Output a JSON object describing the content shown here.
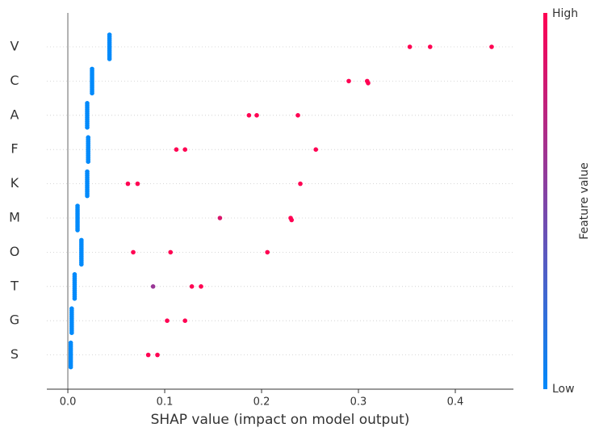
{
  "chart_data": {
    "type": "beeswarm",
    "xlabel": "SHAP value (impact on model output)",
    "categories": [
      "V",
      "C",
      "A",
      "F",
      "K",
      "M",
      "O",
      "T",
      "G",
      "S"
    ],
    "values": [
      [
        0.043,
        0.043,
        0.043,
        0.043,
        0.043,
        0.043,
        0.043,
        0.043,
        0.043,
        0.043,
        0.043,
        0.043,
        0.043,
        0.353,
        0.374,
        0.4375
      ],
      [
        0.025,
        0.025,
        0.025,
        0.025,
        0.025,
        0.025,
        0.025,
        0.025,
        0.025,
        0.025,
        0.025,
        0.025,
        0.025,
        0.29,
        0.309,
        0.31
      ],
      [
        0.02,
        0.02,
        0.02,
        0.02,
        0.02,
        0.02,
        0.02,
        0.02,
        0.02,
        0.02,
        0.02,
        0.02,
        0.02,
        0.187,
        0.195,
        0.2375
      ],
      [
        0.021,
        0.021,
        0.021,
        0.021,
        0.021,
        0.021,
        0.021,
        0.021,
        0.021,
        0.021,
        0.021,
        0.021,
        0.021,
        0.112,
        0.121,
        0.256
      ],
      [
        0.02,
        0.02,
        0.02,
        0.02,
        0.02,
        0.02,
        0.02,
        0.02,
        0.02,
        0.02,
        0.02,
        0.02,
        0.02,
        0.062,
        0.072,
        0.24
      ],
      [
        0.01,
        0.01,
        0.01,
        0.01,
        0.01,
        0.01,
        0.01,
        0.01,
        0.01,
        0.01,
        0.01,
        0.01,
        0.01,
        0.157,
        0.23,
        0.231
      ],
      [
        0.014,
        0.014,
        0.014,
        0.014,
        0.014,
        0.014,
        0.014,
        0.014,
        0.014,
        0.014,
        0.014,
        0.014,
        0.014,
        0.0675,
        0.106,
        0.206
      ],
      [
        0.007,
        0.007,
        0.007,
        0.007,
        0.007,
        0.007,
        0.007,
        0.007,
        0.007,
        0.007,
        0.007,
        0.007,
        0.007,
        0.088,
        0.128,
        0.1375
      ],
      [
        0.004,
        0.004,
        0.004,
        0.004,
        0.004,
        0.004,
        0.004,
        0.004,
        0.004,
        0.004,
        0.004,
        0.004,
        0.004,
        0.1025,
        0.121
      ],
      [
        0.003,
        0.003,
        0.003,
        0.003,
        0.003,
        0.003,
        0.003,
        0.003,
        0.003,
        0.003,
        0.003,
        0.003,
        0.003,
        0.083,
        0.0925
      ]
    ],
    "feature_values": [
      [
        0,
        0,
        0,
        0,
        0,
        0,
        0,
        0,
        0,
        0,
        0,
        0,
        0,
        1,
        1,
        1
      ],
      [
        0,
        0,
        0,
        0,
        0,
        0,
        0,
        0,
        0,
        0,
        0,
        0,
        0,
        1,
        1,
        1
      ],
      [
        0,
        0,
        0,
        0,
        0,
        0,
        0,
        0,
        0,
        0,
        0,
        0,
        0,
        1,
        1,
        1
      ],
      [
        0,
        0,
        0,
        0,
        0,
        0,
        0,
        0,
        0,
        0,
        0,
        0,
        0,
        1,
        1,
        1
      ],
      [
        0,
        0,
        0,
        0,
        0,
        0,
        0,
        0,
        0,
        0,
        0,
        0,
        0,
        1,
        1,
        1
      ],
      [
        0,
        0,
        0,
        0,
        0,
        0,
        0,
        0,
        0,
        0,
        0,
        0,
        0,
        0.85,
        1,
        1
      ],
      [
        0,
        0,
        0,
        0,
        0,
        0,
        0,
        0,
        0,
        0,
        0,
        0,
        0,
        1,
        1,
        1
      ],
      [
        0,
        0,
        0,
        0,
        0,
        0,
        0,
        0,
        0,
        0,
        0,
        0,
        0,
        0.6,
        1,
        1
      ],
      [
        0,
        0,
        0,
        0,
        0,
        0,
        0,
        0,
        0,
        0,
        0,
        0,
        0,
        1,
        1
      ],
      [
        0,
        0,
        0,
        0,
        0,
        0,
        0,
        0,
        0,
        0,
        0,
        0,
        0,
        1,
        1
      ]
    ],
    "low_color": "#008afb",
    "high_color": "#ff0052",
    "xlim": [
      -0.0217,
      0.46
    ],
    "xticks": [
      {
        "value": 0,
        "label": "0.0"
      },
      0.1,
      0.2,
      0.3,
      0.4
    ],
    "grid": true,
    "colorbar": {
      "label": "Feature value",
      "high": "High",
      "low": "Low"
    }
  }
}
